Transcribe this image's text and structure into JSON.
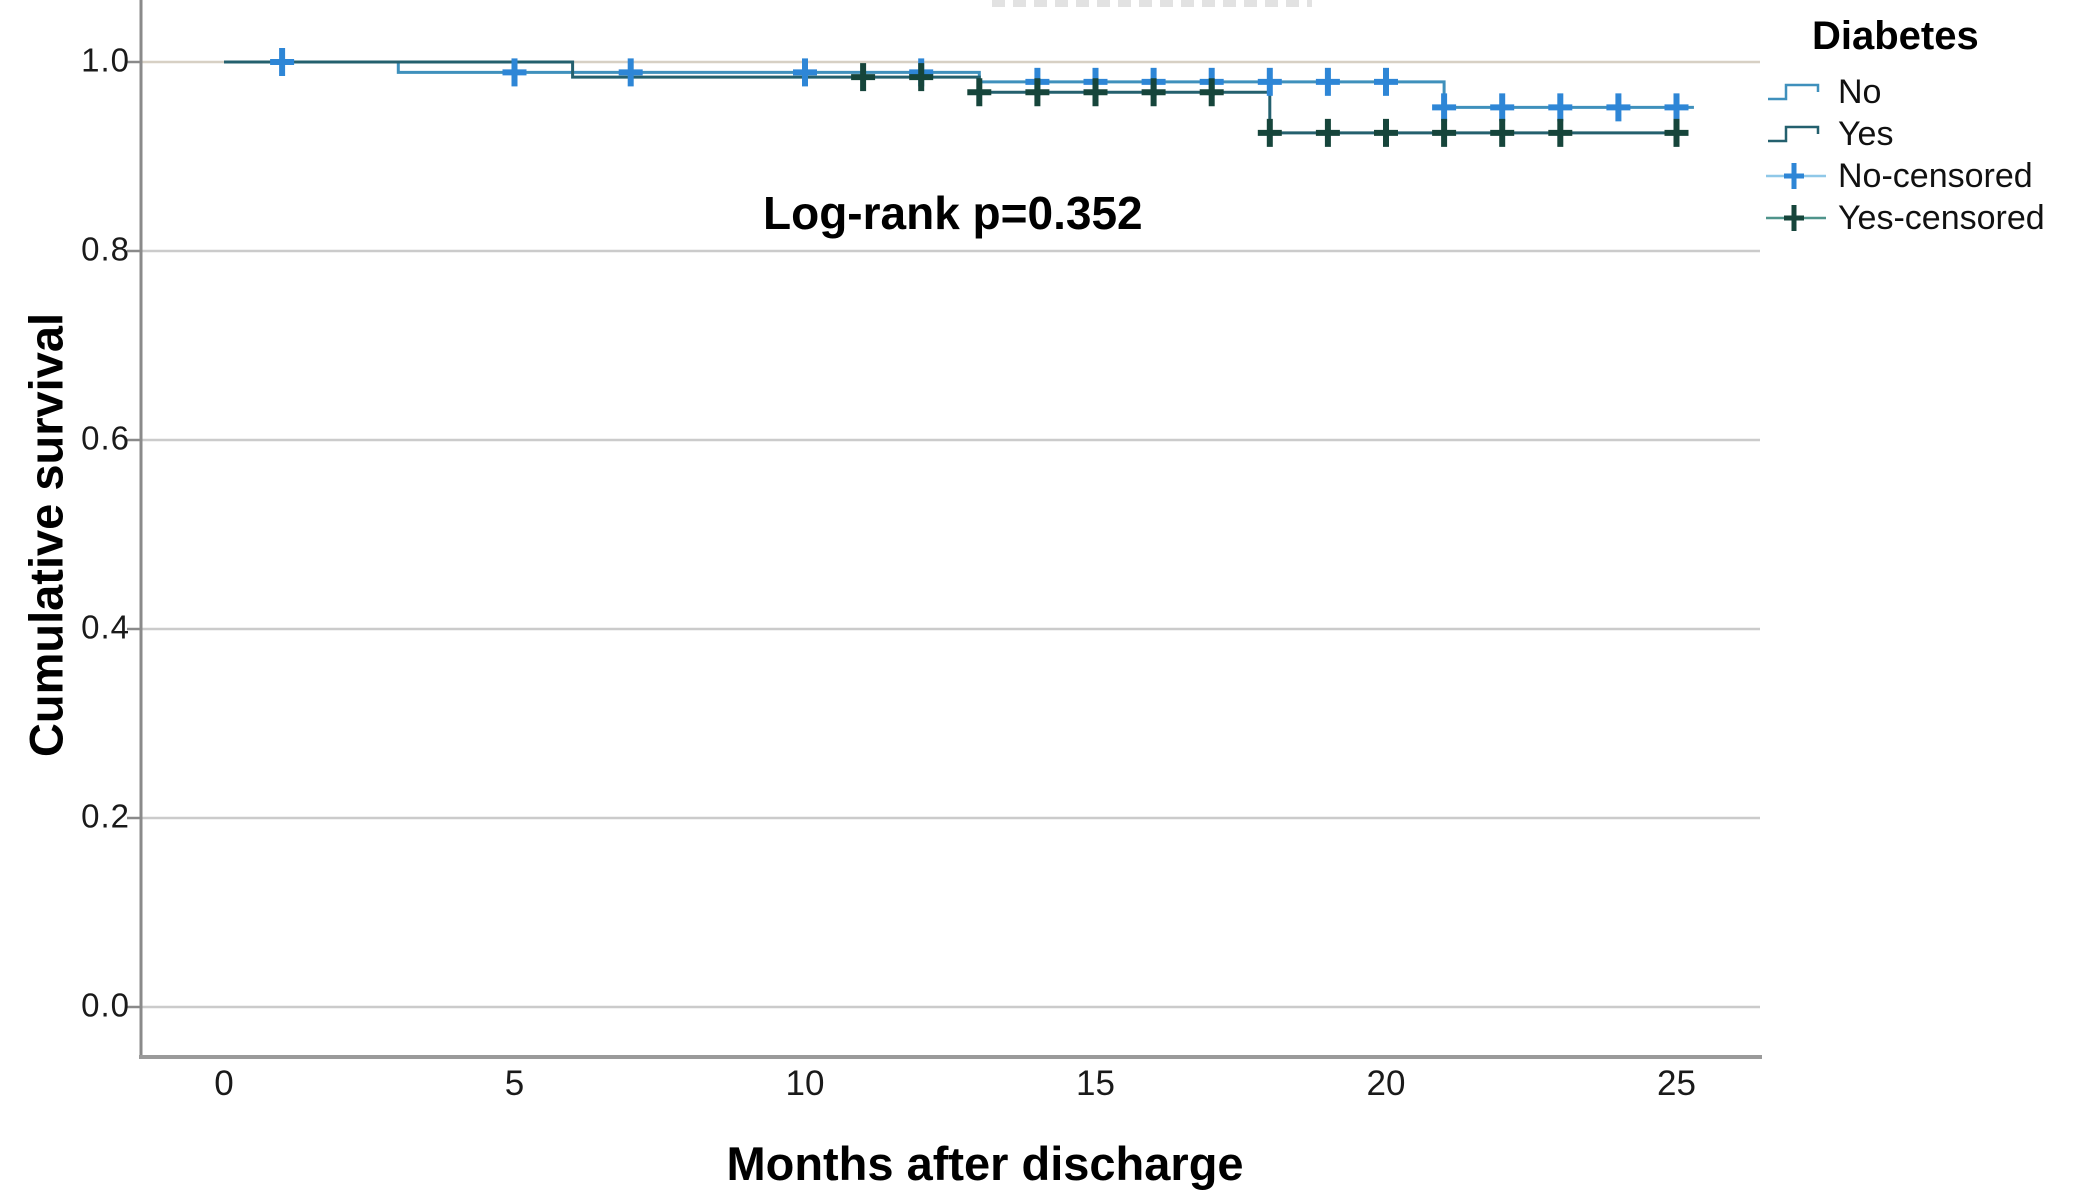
{
  "figure": {
    "y_axis_title": "Cumulative survival",
    "x_axis_title": "Months after discharge",
    "annotation": "Log-rank p=0.352"
  },
  "legend": {
    "title": "Diabetes",
    "entries": [
      {
        "label": "No",
        "type": "step",
        "color": "#3f90bc"
      },
      {
        "label": "Yes",
        "type": "step",
        "color": "#24606e"
      },
      {
        "label": "No-censored",
        "type": "censor",
        "line_color": "#8fc8e8",
        "cross_color": "#2e86d6"
      },
      {
        "label": "Yes-censored",
        "type": "censor",
        "line_color": "#4f948b",
        "cross_color": "#16453b"
      }
    ]
  },
  "chart_data": {
    "type": "line",
    "subtype": "kaplan-meier-step",
    "title": "",
    "xlabel": "Months after discharge",
    "ylabel": "Cumulative survival",
    "annotation": "Log-rank p=0.352",
    "xlim": [
      -1.5,
      26.5
    ],
    "ylim": [
      -0.05,
      1.07
    ],
    "grid": "horizontal-only",
    "legend_position": "right",
    "x_ticks": {
      "values": [
        0,
        5,
        10,
        15,
        20,
        25
      ],
      "labels": [
        "0",
        "5",
        "10",
        "15",
        "20",
        "25"
      ]
    },
    "y_ticks": {
      "values": [
        1.0,
        0.8,
        0.6,
        0.4,
        0.2,
        0.0
      ],
      "labels": [
        "1.0",
        "0.8",
        "0.6",
        "0.4",
        "0.2",
        "0.0"
      ]
    },
    "colors": {
      "no_line": "#3f90bc",
      "no_censor": "#2e86d6",
      "yes_line": "#24606e",
      "yes_censor": "#16453b",
      "gridline": "#cbcbcb",
      "gridline_top": "#d7d0c4",
      "axis": "#8a8a8a"
    },
    "series": [
      {
        "name": "No",
        "color": "#3f90bc",
        "censor_color": "#2e86d6",
        "steps": [
          [
            0,
            1.0
          ],
          [
            3,
            0.989
          ],
          [
            13,
            0.979
          ],
          [
            21,
            0.952
          ]
        ],
        "end_x": 25.3,
        "censored": [
          [
            1,
            1.0
          ],
          [
            5,
            0.989
          ],
          [
            7,
            0.989
          ],
          [
            10,
            0.989
          ],
          [
            12,
            0.989
          ],
          [
            14,
            0.979
          ],
          [
            15,
            0.979
          ],
          [
            16,
            0.979
          ],
          [
            17,
            0.979
          ],
          [
            18,
            0.979
          ],
          [
            19,
            0.979
          ],
          [
            20,
            0.979
          ],
          [
            21,
            0.952
          ],
          [
            22,
            0.952
          ],
          [
            23,
            0.952
          ],
          [
            24,
            0.952
          ],
          [
            25,
            0.952
          ]
        ]
      },
      {
        "name": "Yes",
        "color": "#24606e",
        "censor_color": "#16453b",
        "steps": [
          [
            0,
            1.0
          ],
          [
            6,
            0.984
          ],
          [
            13,
            0.968
          ],
          [
            18,
            0.925
          ]
        ],
        "end_x": 25.2,
        "censored": [
          [
            11,
            0.984
          ],
          [
            12,
            0.984
          ],
          [
            13,
            0.968
          ],
          [
            14,
            0.968
          ],
          [
            15,
            0.968
          ],
          [
            16,
            0.968
          ],
          [
            17,
            0.968
          ],
          [
            18,
            0.925
          ],
          [
            19,
            0.925
          ],
          [
            20,
            0.925
          ],
          [
            21,
            0.925
          ],
          [
            22,
            0.925
          ],
          [
            23,
            0.925
          ],
          [
            25,
            0.925
          ]
        ]
      }
    ]
  }
}
